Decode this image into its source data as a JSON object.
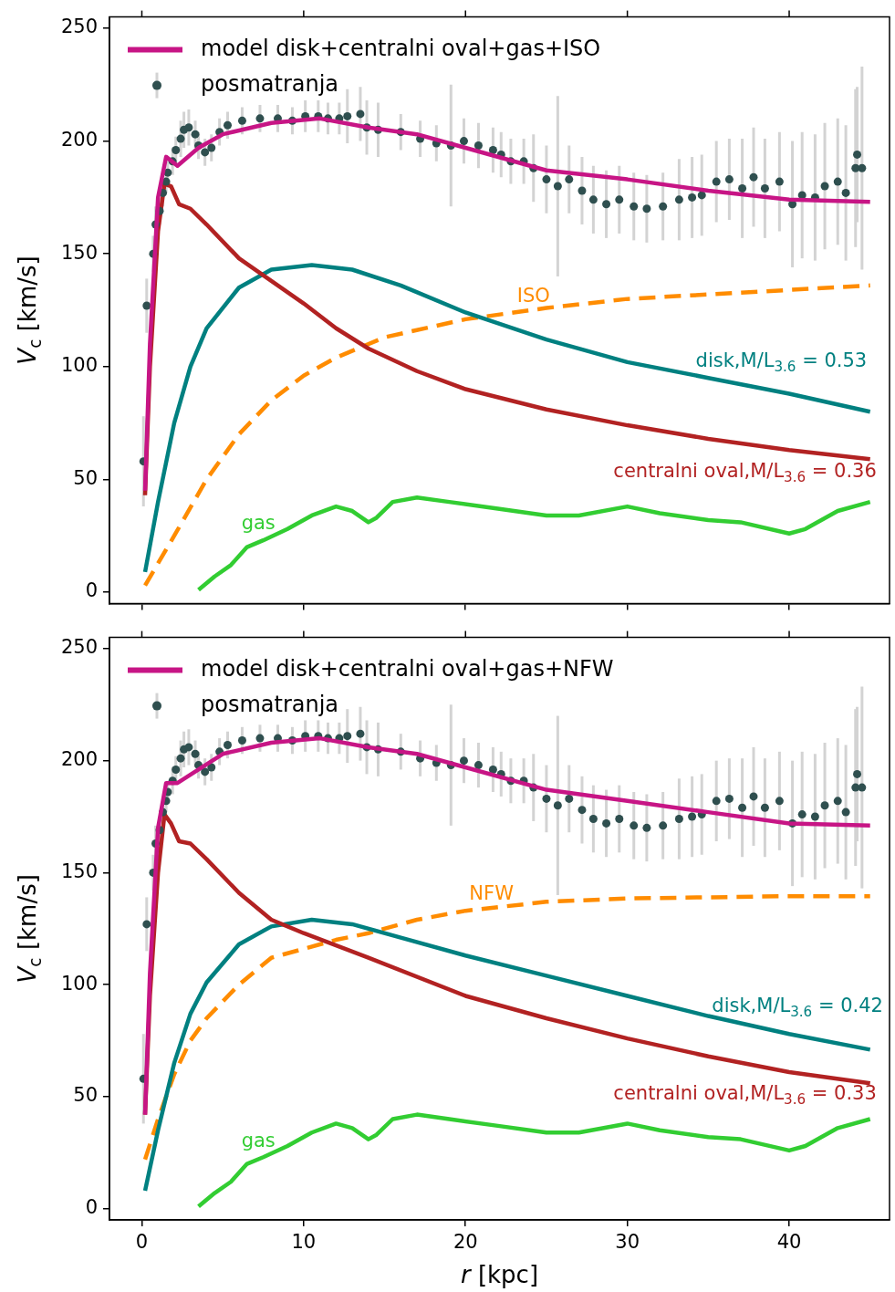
{
  "chart_data": [
    {
      "type": "line",
      "ylabel": "V$_{c}$ [km/s]",
      "xlim": [
        -2,
        46.2
      ],
      "ylim": [
        -5,
        255
      ],
      "xticks": [
        0,
        10,
        20,
        30,
        40
      ],
      "yticks": [
        0,
        50,
        100,
        150,
        200,
        250
      ],
      "tick_labels": "y",
      "legend": "top left",
      "grid": false,
      "series": [
        {
          "name": "model disk+centralni oval+gas+ISO",
          "color": "#c71585",
          "x": [
            0.2,
            0.5,
            1.0,
            1.5,
            2.2,
            3.5,
            5,
            8,
            11,
            14,
            17,
            20,
            25,
            30,
            35,
            40,
            45
          ],
          "values": [
            45,
            110,
            175,
            193,
            189,
            197,
            203,
            208,
            210,
            206,
            203,
            197,
            187,
            183,
            178,
            174,
            173
          ]
        },
        {
          "name": "posmatranja",
          "type": "scatter",
          "color": "#2f4f4f",
          "marker": "circle",
          "x": [
            0.1,
            0.3,
            0.7,
            0.85,
            1.1,
            1.3,
            1.5,
            1.6,
            1.9,
            2.1,
            2.4,
            2.6,
            2.9,
            3.3,
            3.5,
            3.9,
            4.3,
            4.8,
            5.3,
            6.2,
            7.3,
            8.4,
            9.3,
            10.1,
            10.9,
            11.5,
            12.2,
            12.7,
            13.5,
            13.9,
            14.6,
            16.0,
            17.2,
            18.2,
            19.1,
            19.9,
            20.8,
            21.7,
            22.2,
            22.8,
            23.6,
            24.2,
            25.0,
            25.7,
            26.4,
            27.2,
            27.9,
            28.7,
            29.5,
            30.4,
            31.2,
            32.2,
            33.2,
            34.0,
            34.6,
            35.5,
            36.3,
            37.1,
            37.8,
            38.5,
            39.4,
            40.2,
            40.8,
            41.6,
            42.2,
            43.0,
            43.5,
            44.1,
            44.2,
            44.5
          ],
          "values": [
            58,
            127,
            150,
            163,
            169,
            177,
            182,
            186,
            191,
            196,
            201,
            205,
            206,
            203,
            198,
            195,
            197,
            204,
            207,
            209,
            210,
            210,
            209,
            211,
            211,
            210,
            210,
            211,
            212,
            206,
            205,
            204,
            201,
            199,
            198,
            200,
            198,
            196,
            194,
            191,
            191,
            188,
            183,
            180,
            183,
            178,
            174,
            172,
            174,
            171,
            170,
            171,
            174,
            175,
            176,
            182,
            183,
            179,
            184,
            179,
            182,
            172,
            176,
            175,
            180,
            182,
            177,
            188,
            194,
            188
          ],
          "errors": [
            20,
            12,
            8,
            8,
            6,
            6,
            5,
            5,
            6,
            6,
            8,
            8,
            8,
            6,
            6,
            6,
            6,
            6,
            6,
            6,
            6,
            6,
            6,
            7,
            7,
            7,
            7,
            12,
            12,
            12,
            12,
            8,
            8,
            8,
            27,
            10,
            10,
            10,
            10,
            10,
            10,
            15,
            15,
            40,
            15,
            15,
            15,
            15,
            15,
            15,
            15,
            15,
            18,
            18,
            18,
            18,
            18,
            22,
            22,
            22,
            22,
            28,
            28,
            28,
            28,
            28,
            30,
            35,
            30,
            45
          ]
        },
        {
          "name": "centralni oval,M/L$_{3.6}$ = 0.36",
          "color": "#b22222",
          "x": [
            0.2,
            0.5,
            1.0,
            1.4,
            1.8,
            2.3,
            3,
            4,
            6,
            8,
            10,
            12,
            14,
            17,
            20,
            25,
            30,
            35,
            40,
            45
          ],
          "values": [
            43,
            100,
            160,
            181,
            180,
            172,
            170,
            163,
            148,
            138,
            128,
            117,
            108,
            98,
            90,
            81,
            74,
            68,
            63,
            59
          ]
        },
        {
          "name": "disk,M/L$_{3.6}$ = 0.53",
          "color": "#008080",
          "x": [
            0.2,
            1,
            2,
            3,
            4,
            6,
            8,
            10.5,
            13,
            16,
            20,
            25,
            30,
            35,
            40,
            45
          ],
          "values": [
            9,
            40,
            75,
            100,
            117,
            135,
            143,
            145,
            143,
            136,
            124,
            112,
            102,
            95,
            88,
            80
          ]
        },
        {
          "name": "ISO",
          "line_style": "dashed",
          "color": "#ff8c00",
          "x": [
            0.2,
            2,
            4,
            6,
            8,
            10,
            12,
            15,
            20,
            25,
            30,
            35,
            40,
            45
          ],
          "values": [
            3,
            25,
            50,
            70,
            85,
            96,
            104,
            113,
            121,
            126,
            130,
            132,
            134,
            136
          ]
        },
        {
          "name": "gas",
          "color": "#32cd32",
          "x": [
            3.5,
            4.5,
            5.5,
            6.5,
            7.5,
            9,
            10.5,
            12,
            13,
            14,
            14.5,
            15.5,
            17,
            19,
            22,
            25,
            27,
            30,
            32,
            35,
            37,
            40,
            41,
            43,
            45
          ],
          "values": [
            1,
            7,
            12,
            20,
            23,
            28,
            34,
            38,
            36,
            31,
            33,
            40,
            42,
            40,
            37,
            34,
            34,
            38,
            35,
            32,
            31,
            26,
            28,
            36,
            40
          ]
        }
      ]
    },
    {
      "type": "line",
      "xlabel": "r [kpc]",
      "ylabel": "V$_{c}$ [km/s]",
      "xlim": [
        -2,
        46.2
      ],
      "ylim": [
        -5,
        255
      ],
      "xticks": [
        0,
        10,
        20,
        30,
        40
      ],
      "yticks": [
        0,
        50,
        100,
        150,
        200,
        250
      ],
      "legend": "top left",
      "grid": false,
      "series": [
        {
          "name": "model disk+centralni oval+gas+NFW",
          "color": "#c71585",
          "x": [
            0.2,
            0.5,
            1.0,
            1.5,
            2.2,
            3.5,
            5,
            8,
            11,
            14,
            17,
            20,
            25,
            30,
            35,
            40,
            45
          ],
          "values": [
            42,
            105,
            170,
            190,
            190,
            196,
            203,
            208,
            210,
            206,
            203,
            197,
            187,
            182,
            177,
            172,
            171
          ]
        },
        {
          "name": "posmatranja",
          "type": "scatter",
          "color": "#2f4f4f",
          "marker": "circle",
          "x": [
            0.1,
            0.3,
            0.7,
            0.85,
            1.1,
            1.3,
            1.5,
            1.6,
            1.9,
            2.1,
            2.4,
            2.6,
            2.9,
            3.3,
            3.5,
            3.9,
            4.3,
            4.8,
            5.3,
            6.2,
            7.3,
            8.4,
            9.3,
            10.1,
            10.9,
            11.5,
            12.2,
            12.7,
            13.5,
            13.9,
            14.6,
            16.0,
            17.2,
            18.2,
            19.1,
            19.9,
            20.8,
            21.7,
            22.2,
            22.8,
            23.6,
            24.2,
            25.0,
            25.7,
            26.4,
            27.2,
            27.9,
            28.7,
            29.5,
            30.4,
            31.2,
            32.2,
            33.2,
            34.0,
            34.6,
            35.5,
            36.3,
            37.1,
            37.8,
            38.5,
            39.4,
            40.2,
            40.8,
            41.6,
            42.2,
            43.0,
            43.5,
            44.1,
            44.2,
            44.5
          ],
          "values": [
            58,
            127,
            150,
            163,
            169,
            177,
            182,
            186,
            191,
            196,
            201,
            205,
            206,
            203,
            198,
            195,
            197,
            204,
            207,
            209,
            210,
            210,
            209,
            211,
            211,
            210,
            210,
            211,
            212,
            206,
            205,
            204,
            201,
            199,
            198,
            200,
            198,
            196,
            194,
            191,
            191,
            188,
            183,
            180,
            183,
            178,
            174,
            172,
            174,
            171,
            170,
            171,
            174,
            175,
            176,
            182,
            183,
            179,
            184,
            179,
            182,
            172,
            176,
            175,
            180,
            182,
            177,
            188,
            194,
            188
          ],
          "errors": [
            20,
            12,
            8,
            8,
            6,
            6,
            5,
            5,
            6,
            6,
            8,
            8,
            8,
            6,
            6,
            6,
            6,
            6,
            6,
            6,
            6,
            6,
            6,
            7,
            7,
            7,
            7,
            12,
            12,
            12,
            12,
            8,
            8,
            8,
            27,
            10,
            10,
            10,
            10,
            10,
            10,
            15,
            15,
            40,
            15,
            15,
            15,
            15,
            15,
            15,
            15,
            15,
            18,
            18,
            18,
            18,
            18,
            22,
            22,
            22,
            22,
            28,
            28,
            28,
            28,
            28,
            30,
            35,
            30,
            45
          ]
        },
        {
          "name": "centralni oval,M/L$_{3.6}$ = 0.33",
          "color": "#b22222",
          "x": [
            0.2,
            0.5,
            1.0,
            1.4,
            1.8,
            2.3,
            3,
            4,
            6,
            8,
            10,
            14,
            20,
            25,
            30,
            35,
            40,
            45
          ],
          "values": [
            42,
            95,
            150,
            176,
            172,
            164,
            163,
            156,
            141,
            129,
            123,
            112,
            95,
            85,
            76,
            68,
            61,
            56
          ]
        },
        {
          "name": "disk,M/L$_{3.6}$ = 0.42",
          "color": "#008080",
          "x": [
            0.2,
            1,
            2,
            3,
            4,
            6,
            8,
            10.5,
            13,
            16,
            20,
            25,
            30,
            35,
            40,
            45
          ],
          "values": [
            8,
            35,
            65,
            87,
            101,
            118,
            126,
            129,
            127,
            121,
            113,
            104,
            95,
            86,
            78,
            71
          ]
        },
        {
          "name": "NFW",
          "line_style": "dashed",
          "color": "#ff8c00",
          "x": [
            0.2,
            1,
            2,
            3,
            4,
            6,
            8,
            10,
            12,
            14,
            17,
            20,
            25,
            30,
            35,
            40,
            45
          ],
          "values": [
            22,
            40,
            60,
            75,
            85,
            100,
            112,
            116,
            120,
            123,
            129,
            133,
            137,
            138.5,
            139,
            139.5,
            139.5
          ]
        },
        {
          "name": "gas",
          "color": "#32cd32",
          "x": [
            3.5,
            4.5,
            5.5,
            6.5,
            7.5,
            9,
            10.5,
            12,
            13,
            14,
            14.5,
            15.5,
            17,
            19,
            22,
            25,
            27,
            30,
            32,
            35,
            37,
            40,
            41,
            43,
            45
          ],
          "values": [
            1,
            7,
            12,
            20,
            23,
            28,
            34,
            38,
            36,
            31,
            33,
            40,
            42,
            40,
            37,
            34,
            34,
            38,
            35,
            32,
            31,
            26,
            28,
            36,
            40
          ]
        }
      ]
    }
  ]
}
